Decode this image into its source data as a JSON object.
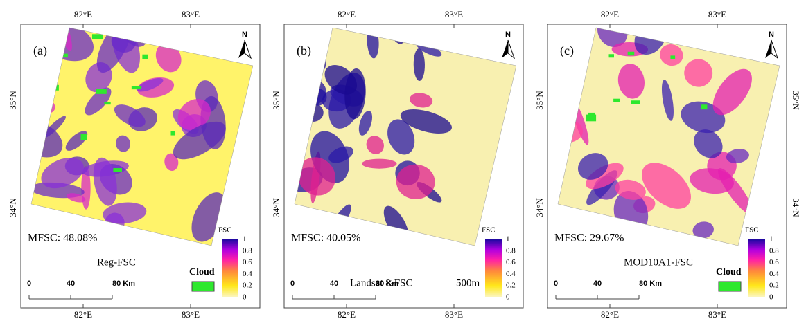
{
  "panels": [
    {
      "label": "(a)",
      "north": "N",
      "mfsc": "MFSC: 48.08%",
      "map_title": "Reg-FSC",
      "cloud": "Cloud",
      "top_ticks": [
        "82°E",
        "83°E"
      ],
      "bottom_ticks": [
        "82°E",
        "83°E"
      ],
      "left_ticks": [
        "35°N",
        "34°N"
      ],
      "legend": {
        "title": "FSC",
        "ticks": [
          "1",
          "0.8",
          "0.6",
          "0.4",
          "0.2",
          "0"
        ]
      },
      "scale": [
        "0",
        "40",
        "80 Km"
      ]
    },
    {
      "label": "(b)",
      "north": "N",
      "mfsc": "MFSC: 40.05%",
      "map_title": "Landsat 8-FSC",
      "resolution": "500m",
      "top_ticks": [
        "82°E",
        "83°E"
      ],
      "bottom_ticks": [
        "82°E",
        "83°E"
      ],
      "left_ticks": [
        "35°N",
        "34°N"
      ],
      "legend": {
        "title": "FSC",
        "ticks": [
          "1",
          "0.8",
          "0.6",
          "0.4",
          "0.2",
          "0"
        ]
      },
      "scale": [
        "0",
        "40",
        "80 Km"
      ]
    },
    {
      "label": "(c)",
      "north": "N",
      "mfsc": "MFSC: 29.67%",
      "map_title": "MOD10A1-FSC",
      "cloud": "Cloud",
      "top_ticks": [
        "82°E",
        "83°E"
      ],
      "bottom_ticks": [
        "82°E",
        "83°E"
      ],
      "left_ticks": [
        "35°N",
        "34°N"
      ],
      "right_ticks": [
        "35°N",
        "34°N"
      ],
      "legend": {
        "title": "FSC",
        "ticks": [
          "1",
          "0.8",
          "0.6",
          "0.4",
          "0.2",
          "0"
        ]
      },
      "scale": [
        "0",
        "40",
        "80 Km"
      ]
    }
  ]
}
